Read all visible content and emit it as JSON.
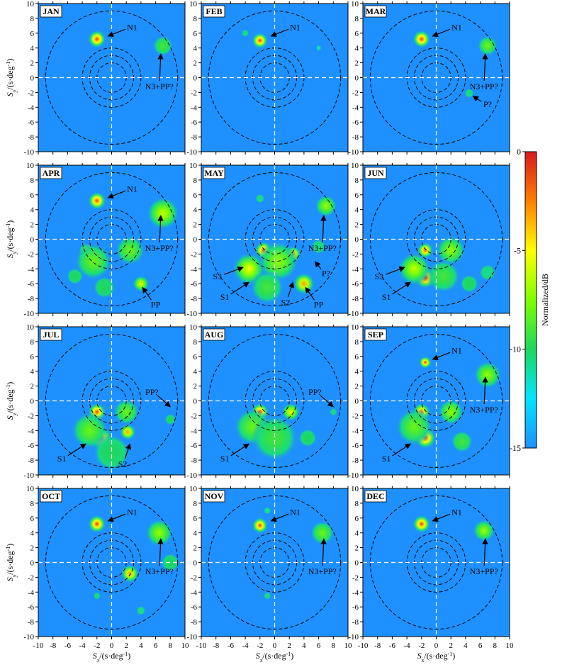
{
  "chart_data": {
    "type": "heatmap",
    "layout": "4 rows x 3 columns of panels",
    "axis_range": {
      "x": [
        -10,
        10
      ],
      "y": [
        -10,
        10
      ]
    },
    "x_ticks": [
      -10,
      -8,
      -6,
      -4,
      -2,
      0,
      2,
      4,
      6,
      8,
      10
    ],
    "y_ticks": [
      10,
      8,
      6,
      4,
      2,
      0,
      -2,
      -4,
      -6,
      -8,
      -10
    ],
    "xlabel": {
      "main": "S",
      "sub": "x",
      "tail": "/(s·deg",
      "sup": "-1",
      "close": ")"
    },
    "ylabel": {
      "main": "S",
      "sub": "y",
      "tail": "/(s·deg",
      "sup": "-1",
      "close": ")"
    },
    "dashed_circle_radii": [
      2,
      3,
      4,
      9
    ],
    "crosshair_color": "#ffffff",
    "background_color": "#1e90ff",
    "colorbar": {
      "label": "Normalized/dB",
      "range": [
        -15,
        0
      ],
      "ticks": [
        0,
        -5,
        -10,
        -15
      ],
      "colors": [
        "#d7191c",
        "#ff7f00",
        "#ffff00",
        "#7fff00",
        "#1ed760",
        "#00e5ff",
        "#1e90ff"
      ]
    },
    "panels": [
      {
        "month": "JAN",
        "blobs": [
          {
            "x": -2,
            "y": 5.2,
            "r": 1.0,
            "db": -1
          },
          {
            "x": 7,
            "y": 4.3,
            "r": 1.1,
            "db": -9
          }
        ],
        "annotations": [
          {
            "text": "N1",
            "tx": 2.8,
            "ty": 6.8,
            "ax": -0.5,
            "ay": 5.6
          },
          {
            "text": "N3+PP?",
            "tx": 6.5,
            "ty": -1.2,
            "ax": 6.7,
            "ay": 3.2
          }
        ]
      },
      {
        "month": "FEB",
        "blobs": [
          {
            "x": -2,
            "y": 5,
            "r": 0.9,
            "db": -1
          },
          {
            "x": -4,
            "y": 6,
            "r": 0.4,
            "db": -11
          },
          {
            "x": 6,
            "y": 4,
            "r": 0.3,
            "db": -13
          }
        ],
        "annotations": [
          {
            "text": "N1",
            "tx": 2.8,
            "ty": 6.8,
            "ax": -0.5,
            "ay": 5.6
          }
        ]
      },
      {
        "month": "MAR",
        "blobs": [
          {
            "x": -2,
            "y": 5.2,
            "r": 1.0,
            "db": -1
          },
          {
            "x": 7,
            "y": 4.3,
            "r": 1.1,
            "db": -8
          },
          {
            "x": 4.5,
            "y": -2.1,
            "r": 0.5,
            "db": -11
          }
        ],
        "annotations": [
          {
            "text": "N1",
            "tx": 2.8,
            "ty": 6.8,
            "ax": -0.5,
            "ay": 5.6
          },
          {
            "text": "N3+PP?",
            "tx": 6.5,
            "ty": -1.2,
            "ax": 6.7,
            "ay": 3.2
          },
          {
            "text": "P?",
            "tx": 7,
            "ty": -3.6,
            "ax": 5,
            "ay": -2.5
          }
        ]
      },
      {
        "month": "APR",
        "blobs": [
          {
            "x": -2,
            "y": 5.2,
            "r": 1.0,
            "db": -1
          },
          {
            "x": 7,
            "y": 3.5,
            "r": 1.8,
            "db": -6
          },
          {
            "x": -3.5,
            "y": -1.5,
            "r": 0.8,
            "db": -7
          },
          {
            "x": -2.5,
            "y": -3,
            "r": 2.0,
            "db": -8
          },
          {
            "x": 2.5,
            "y": -1.5,
            "r": 1.6,
            "db": -8
          },
          {
            "x": 4,
            "y": -6,
            "r": 0.9,
            "db": -5
          },
          {
            "x": -5,
            "y": -5,
            "r": 0.9,
            "db": -10
          },
          {
            "x": -1,
            "y": -6.5,
            "r": 1.2,
            "db": -10
          }
        ],
        "annotations": [
          {
            "text": "N1",
            "tx": 2.8,
            "ty": 6.8,
            "ax": -0.5,
            "ay": 5.6
          },
          {
            "text": "N3+PP?",
            "tx": 6.5,
            "ty": -1.2,
            "ax": 6.7,
            "ay": 3.2
          },
          {
            "text": "PP",
            "tx": 6,
            "ty": -8.8,
            "ax": 4.2,
            "ay": -6.5
          }
        ]
      },
      {
        "month": "MAY",
        "blobs": [
          {
            "x": -1.5,
            "y": -1.5,
            "r": 1.0,
            "db": -1.5
          },
          {
            "x": 2.5,
            "y": -2,
            "r": 0.9,
            "db": -2.5
          },
          {
            "x": -3.5,
            "y": -4,
            "r": 1.8,
            "db": -5
          },
          {
            "x": 0.5,
            "y": -3,
            "r": 2.2,
            "db": -7
          },
          {
            "x": 4,
            "y": -6,
            "r": 1.2,
            "db": -3
          },
          {
            "x": 7,
            "y": 4.5,
            "r": 1.2,
            "db": -7
          },
          {
            "x": -2,
            "y": 5.5,
            "r": 0.5,
            "db": -11
          },
          {
            "x": -1,
            "y": -6.5,
            "r": 1.8,
            "db": -9
          },
          {
            "x": 6,
            "y": -1,
            "r": 0.8,
            "db": -11
          }
        ],
        "annotations": [
          {
            "text": "N3+PP?",
            "tx": 6.5,
            "ty": -1.2,
            "ax": 6.7,
            "ay": 3.2
          },
          {
            "text": "S3",
            "tx": -7.8,
            "ty": -5,
            "ax": -4.3,
            "ay": -3.8
          },
          {
            "text": "S1",
            "tx": -6.8,
            "ty": -7.8,
            "ax": -3.5,
            "ay": -5.8
          },
          {
            "text": "S2",
            "tx": 1.5,
            "ty": -8.5,
            "ax": 2.5,
            "ay": -5.8
          },
          {
            "text": "P?",
            "tx": 7,
            "ty": -4.6,
            "ax": 5.5,
            "ay": -3
          },
          {
            "text": "PP",
            "tx": 6,
            "ty": -8.8,
            "ax": 4.2,
            "ay": -6.5
          }
        ]
      },
      {
        "month": "JUN",
        "blobs": [
          {
            "x": -1.5,
            "y": -5.2,
            "r": 1.2,
            "db": 0
          },
          {
            "x": -1.5,
            "y": -1.5,
            "r": 0.9,
            "db": -2
          },
          {
            "x": -3,
            "y": -4,
            "r": 1.8,
            "db": -6
          },
          {
            "x": 2,
            "y": -1.5,
            "r": 1.6,
            "db": -7
          },
          {
            "x": 1,
            "y": -5,
            "r": 1.8,
            "db": -9
          },
          {
            "x": 4.5,
            "y": -6,
            "r": 1.0,
            "db": -10
          },
          {
            "x": 7,
            "y": -4.5,
            "r": 0.9,
            "db": -11
          }
        ],
        "annotations": [
          {
            "text": "S3",
            "tx": -7.8,
            "ty": -5,
            "ax": -4.3,
            "ay": -3.8
          },
          {
            "text": "S1",
            "tx": -6.8,
            "ty": -7.8,
            "ax": -3.5,
            "ay": -5.8
          }
        ]
      },
      {
        "month": "JUL",
        "blobs": [
          {
            "x": -2,
            "y": -1.5,
            "r": 1.0,
            "db": -1
          },
          {
            "x": -1.5,
            "y": -5,
            "r": 1.3,
            "db": -2
          },
          {
            "x": 2.2,
            "y": -4.2,
            "r": 0.9,
            "db": -3
          },
          {
            "x": 2,
            "y": -1.5,
            "r": 1.4,
            "db": -8
          },
          {
            "x": -3,
            "y": -4,
            "r": 2.0,
            "db": -8
          },
          {
            "x": 0,
            "y": -7,
            "r": 2.0,
            "db": -10
          },
          {
            "x": 8,
            "y": -2.5,
            "r": 0.6,
            "db": -10
          }
        ],
        "annotations": [
          {
            "text": "S1",
            "tx": -6.8,
            "ty": -7.8,
            "ax": -3.5,
            "ay": -5.8
          },
          {
            "text": "S2",
            "tx": 1.5,
            "ty": -8.5,
            "ax": 2.5,
            "ay": -5.8
          },
          {
            "text": "PP?",
            "tx": 5.5,
            "ty": 1.2,
            "ax": 8,
            "ay": -0.8
          }
        ]
      },
      {
        "month": "AUG",
        "blobs": [
          {
            "x": -2,
            "y": -1.5,
            "r": 1.0,
            "db": -1
          },
          {
            "x": 2.2,
            "y": -1.5,
            "r": 1.0,
            "db": -5
          },
          {
            "x": -3,
            "y": -3.5,
            "r": 2.0,
            "db": -8
          },
          {
            "x": 0,
            "y": -5,
            "r": 2.5,
            "db": -9
          },
          {
            "x": 4.5,
            "y": -5,
            "r": 1.0,
            "db": -10
          },
          {
            "x": 8,
            "y": -1.5,
            "r": 0.4,
            "db": -11
          }
        ],
        "annotations": [
          {
            "text": "S1",
            "tx": -6.8,
            "ty": -7.8,
            "ax": -3.5,
            "ay": -5.8
          },
          {
            "text": "PP?",
            "tx": 5.5,
            "ty": 1.2,
            "ax": 8,
            "ay": -0.8
          }
        ]
      },
      {
        "month": "SEP",
        "blobs": [
          {
            "x": -1.5,
            "y": 5.2,
            "r": 0.7,
            "db": -1
          },
          {
            "x": 7,
            "y": 3.5,
            "r": 1.5,
            "db": -7
          },
          {
            "x": -2,
            "y": -1.5,
            "r": 1.0,
            "db": -2
          },
          {
            "x": -1.5,
            "y": -5,
            "r": 1.2,
            "db": -1
          },
          {
            "x": 2,
            "y": -1.5,
            "r": 1.4,
            "db": -7
          },
          {
            "x": -3,
            "y": -3.5,
            "r": 2.0,
            "db": -8
          },
          {
            "x": 3.5,
            "y": -5.5,
            "r": 1.2,
            "db": -9
          }
        ],
        "annotations": [
          {
            "text": "N1",
            "tx": 2.8,
            "ty": 6.8,
            "ax": -0.5,
            "ay": 5.6
          },
          {
            "text": "N3+PP?",
            "tx": 6.5,
            "ty": -1.2,
            "ax": 6.7,
            "ay": 3.2
          },
          {
            "text": "S1",
            "tx": -6.8,
            "ty": -7.8,
            "ax": -3.5,
            "ay": -5.8
          }
        ]
      },
      {
        "month": "OCT",
        "blobs": [
          {
            "x": -2,
            "y": 5.2,
            "r": 1.0,
            "db": -1
          },
          {
            "x": 6.5,
            "y": 4,
            "r": 1.5,
            "db": -7
          },
          {
            "x": 8,
            "y": 0,
            "r": 1.0,
            "db": -10
          },
          {
            "x": 2.5,
            "y": -1.5,
            "r": 1.0,
            "db": -3
          },
          {
            "x": -2,
            "y": -4.5,
            "r": 0.4,
            "db": -11
          },
          {
            "x": 4,
            "y": -6.5,
            "r": 0.5,
            "db": -11
          }
        ],
        "annotations": [
          {
            "text": "N1",
            "tx": 2.8,
            "ty": 6.8,
            "ax": -0.5,
            "ay": 5.6
          },
          {
            "text": "N3+PP?",
            "tx": 6.5,
            "ty": -1.2,
            "ax": 6.7,
            "ay": 3.2
          }
        ]
      },
      {
        "month": "NOV",
        "blobs": [
          {
            "x": -2,
            "y": 5,
            "r": 0.9,
            "db": -1
          },
          {
            "x": 6.5,
            "y": 4,
            "r": 1.3,
            "db": -8
          },
          {
            "x": -1,
            "y": -4.5,
            "r": 0.4,
            "db": -11
          },
          {
            "x": -1,
            "y": 7,
            "r": 0.4,
            "db": -12
          }
        ],
        "annotations": [
          {
            "text": "N1",
            "tx": 2.8,
            "ty": 6.8,
            "ax": -0.5,
            "ay": 5.6
          },
          {
            "text": "N3+PP?",
            "tx": 6.5,
            "ty": -1.2,
            "ax": 6.7,
            "ay": 3.2
          }
        ]
      },
      {
        "month": "DEC",
        "blobs": [
          {
            "x": -2,
            "y": 5.2,
            "r": 1.0,
            "db": -1
          },
          {
            "x": 6.5,
            "y": 4.3,
            "r": 1.2,
            "db": -7
          }
        ],
        "annotations": [
          {
            "text": "N1",
            "tx": 2.8,
            "ty": 6.8,
            "ax": -0.5,
            "ay": 5.6
          },
          {
            "text": "N3+PP?",
            "tx": 6.5,
            "ty": -1.2,
            "ax": 6.7,
            "ay": 3.2
          }
        ]
      }
    ]
  }
}
